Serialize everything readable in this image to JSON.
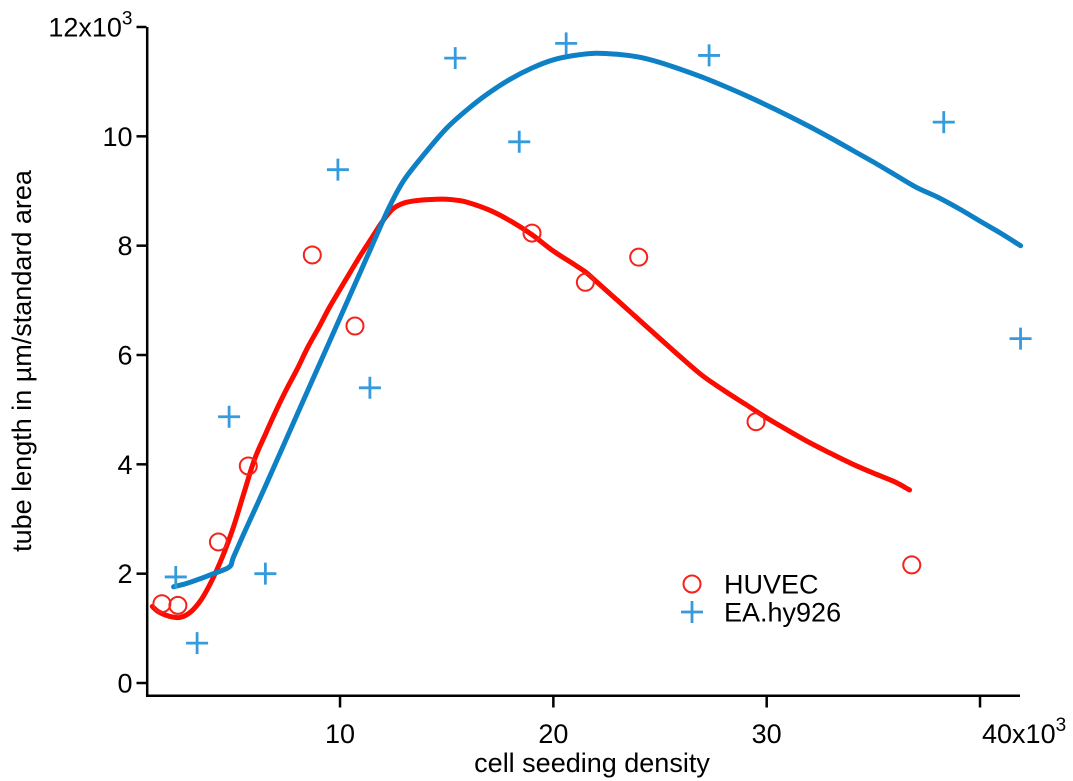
{
  "figure": {
    "background": "#ffffff",
    "axis_color": "#000000"
  },
  "chart_data": {
    "type": "scatter",
    "title": "",
    "xlabel": "cell seeding density",
    "ylabel": "tube length in µm/standard area",
    "xlim": [
      950,
      41900
    ],
    "ylim": [
      -220,
      12000
    ],
    "grid": false,
    "unit_suffix": {
      "text": "x10",
      "sup": "3"
    },
    "x_ticks": [
      {
        "value": 10000,
        "label": "10"
      },
      {
        "value": 20000,
        "label": "20"
      },
      {
        "value": 30000,
        "label": "30"
      },
      {
        "value": 40000,
        "label": "40",
        "suffix": true
      }
    ],
    "y_ticks": [
      {
        "value": 0,
        "label": "0"
      },
      {
        "value": 2000,
        "label": "2"
      },
      {
        "value": 4000,
        "label": "4"
      },
      {
        "value": 6000,
        "label": "6"
      },
      {
        "value": 8000,
        "label": "8"
      },
      {
        "value": 10000,
        "label": "10"
      },
      {
        "value": 12000,
        "label": "12",
        "suffix": true
      }
    ],
    "legend": {
      "position": "inside lower right",
      "items": [
        "HUVEC",
        "EA.hy926"
      ]
    },
    "series": [
      {
        "name": "HUVEC",
        "marker": "circle",
        "color": "#f5221b",
        "points": [
          [
            1650,
            1450
          ],
          [
            2400,
            1420
          ],
          [
            4300,
            2580
          ],
          [
            5700,
            3970
          ],
          [
            8700,
            7830
          ],
          [
            10700,
            6530
          ],
          [
            19000,
            8230
          ],
          [
            21500,
            7330
          ],
          [
            24000,
            7790
          ],
          [
            29500,
            4780
          ],
          [
            36800,
            2160
          ]
        ]
      },
      {
        "name": "EA.hy926",
        "marker": "plus",
        "color": "#359bdc",
        "points": [
          [
            2300,
            1940
          ],
          [
            3300,
            730
          ],
          [
            4800,
            4870
          ],
          [
            6500,
            2000
          ],
          [
            9900,
            9390
          ],
          [
            11400,
            5400
          ],
          [
            15400,
            11430
          ],
          [
            18400,
            9900
          ],
          [
            20600,
            11700
          ],
          [
            27300,
            11480
          ],
          [
            38300,
            10260
          ],
          [
            41900,
            6300
          ]
        ]
      }
    ],
    "fit_curves": [
      {
        "series": "HUVEC",
        "color": "#fb0b00",
        "points": [
          [
            1200,
            1400
          ],
          [
            1500,
            1300
          ],
          [
            2000,
            1220
          ],
          [
            2500,
            1200
          ],
          [
            3000,
            1300
          ],
          [
            3500,
            1530
          ],
          [
            4000,
            1880
          ],
          [
            4500,
            2320
          ],
          [
            5000,
            2850
          ],
          [
            5500,
            3480
          ],
          [
            6000,
            4100
          ],
          [
            6500,
            4550
          ],
          [
            7000,
            4980
          ],
          [
            7500,
            5380
          ],
          [
            8000,
            5750
          ],
          [
            8500,
            6150
          ],
          [
            9000,
            6500
          ],
          [
            9500,
            6870
          ],
          [
            10000,
            7200
          ],
          [
            10500,
            7530
          ],
          [
            11000,
            7850
          ],
          [
            11500,
            8150
          ],
          [
            12000,
            8450
          ],
          [
            12500,
            8680
          ],
          [
            13000,
            8780
          ],
          [
            13500,
            8820
          ],
          [
            14000,
            8840
          ],
          [
            14500,
            8850
          ],
          [
            15000,
            8850
          ],
          [
            15500,
            8830
          ],
          [
            16000,
            8790
          ],
          [
            17000,
            8650
          ],
          [
            18000,
            8450
          ],
          [
            19000,
            8200
          ],
          [
            20000,
            7900
          ],
          [
            21000,
            7650
          ],
          [
            21500,
            7520
          ],
          [
            22000,
            7350
          ],
          [
            23000,
            7000
          ],
          [
            24000,
            6650
          ],
          [
            25000,
            6300
          ],
          [
            26000,
            5950
          ],
          [
            27000,
            5620
          ],
          [
            28000,
            5350
          ],
          [
            29000,
            5100
          ],
          [
            30000,
            4850
          ],
          [
            31000,
            4620
          ],
          [
            32000,
            4400
          ],
          [
            33000,
            4200
          ],
          [
            34000,
            4010
          ],
          [
            35000,
            3840
          ],
          [
            36000,
            3680
          ],
          [
            36700,
            3530
          ]
        ]
      },
      {
        "series": "EA.hy926",
        "color": "#0e80c5",
        "points": [
          [
            2200,
            1760
          ],
          [
            2800,
            1820
          ],
          [
            3400,
            1900
          ],
          [
            4000,
            1990
          ],
          [
            4800,
            2120
          ],
          [
            5000,
            2300
          ],
          [
            5500,
            2740
          ],
          [
            6500,
            3600
          ],
          [
            7500,
            4480
          ],
          [
            8500,
            5360
          ],
          [
            9500,
            6240
          ],
          [
            10500,
            7120
          ],
          [
            11500,
            8000
          ],
          [
            12300,
            8700
          ],
          [
            13000,
            9200
          ],
          [
            14000,
            9700
          ],
          [
            15000,
            10150
          ],
          [
            16000,
            10500
          ],
          [
            17000,
            10800
          ],
          [
            18000,
            11050
          ],
          [
            19000,
            11250
          ],
          [
            20000,
            11400
          ],
          [
            21000,
            11480
          ],
          [
            22000,
            11520
          ],
          [
            23000,
            11500
          ],
          [
            24000,
            11450
          ],
          [
            25000,
            11350
          ],
          [
            26000,
            11220
          ],
          [
            27000,
            11080
          ],
          [
            28000,
            10920
          ],
          [
            29000,
            10750
          ],
          [
            30000,
            10570
          ],
          [
            31000,
            10380
          ],
          [
            32000,
            10180
          ],
          [
            33000,
            9970
          ],
          [
            34000,
            9750
          ],
          [
            35000,
            9530
          ],
          [
            36000,
            9300
          ],
          [
            37000,
            9070
          ],
          [
            38000,
            8890
          ],
          [
            39000,
            8680
          ],
          [
            40000,
            8450
          ],
          [
            41000,
            8220
          ],
          [
            41900,
            8000
          ]
        ]
      }
    ]
  }
}
